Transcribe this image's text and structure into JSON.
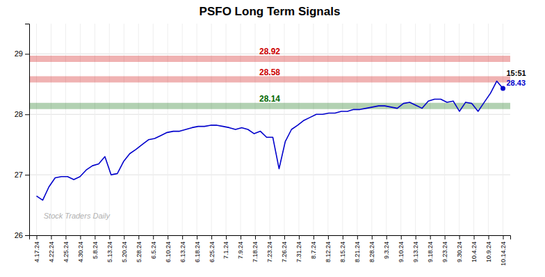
{
  "chart_data": {
    "type": "line",
    "title": "PSFO Long Term Signals",
    "color": "#0000cc",
    "grid": true,
    "xlim": [
      -0.5,
      32.5
    ],
    "xticks": [
      {
        "value": 0,
        "label": "4.17.24"
      },
      {
        "value": 1,
        "label": "4.22.24"
      },
      {
        "value": 2,
        "label": "4.25.24"
      },
      {
        "value": 3,
        "label": "4.30.24"
      },
      {
        "value": 4,
        "label": "5.8.24"
      },
      {
        "value": 5,
        "label": "5.13.24"
      },
      {
        "value": 6,
        "label": "5.20.24"
      },
      {
        "value": 7,
        "label": "5.28.24"
      },
      {
        "value": 8,
        "label": "6.5.24"
      },
      {
        "value": 9,
        "label": "6.10.24"
      },
      {
        "value": 10,
        "label": "6.13.24"
      },
      {
        "value": 11,
        "label": "6.18.24"
      },
      {
        "value": 12,
        "label": "6.25.24"
      },
      {
        "value": 13,
        "label": "7.1.24"
      },
      {
        "value": 14,
        "label": "7.9.24"
      },
      {
        "value": 15,
        "label": "7.18.24"
      },
      {
        "value": 16,
        "label": "7.23.24"
      },
      {
        "value": 17,
        "label": "7.26.24"
      },
      {
        "value": 18,
        "label": "7.31.24"
      },
      {
        "value": 19,
        "label": "8.7.24"
      },
      {
        "value": 20,
        "label": "8.12.24"
      },
      {
        "value": 21,
        "label": "8.15.24"
      },
      {
        "value": 22,
        "label": "8.21.24"
      },
      {
        "value": 23,
        "label": "8.28.24"
      },
      {
        "value": 24,
        "label": "9.3.24"
      },
      {
        "value": 25,
        "label": "9.10.24"
      },
      {
        "value": 26,
        "label": "9.13.24"
      },
      {
        "value": 27,
        "label": "9.18.24"
      },
      {
        "value": 28,
        "label": "9.23.24"
      },
      {
        "value": 29,
        "label": "9.30.24"
      },
      {
        "value": 30,
        "label": "10.4.24"
      },
      {
        "value": 31,
        "label": "10.9.24"
      },
      {
        "value": 32,
        "label": "10.14.24"
      }
    ],
    "ylim": [
      26.0,
      29.5
    ],
    "yticks": [
      26,
      27,
      28,
      29
    ],
    "x": [
      0,
      0.4266666666666667,
      0.8533333333333334,
      1.28,
      1.7066666666666668,
      2.1333333333333333,
      2.56,
      2.986666666666667,
      3.4133333333333336,
      3.84,
      4.266666666666667,
      4.693333333333333,
      5.12,
      5.546666666666667,
      5.973333333333334,
      6.4,
      6.826666666666667,
      7.253333333333333,
      7.68,
      8.106666666666667,
      8.533333333333333,
      8.96,
      9.386666666666667,
      9.813333333333333,
      10.24,
      10.666666666666666,
      11.093333333333334,
      11.52,
      11.946666666666667,
      12.373333333333333,
      12.8,
      13.226666666666667,
      13.653333333333334,
      14.08,
      14.506666666666666,
      14.933333333333334,
      15.36,
      15.786666666666667,
      16.213333333333335,
      16.64,
      17.066666666666666,
      17.493333333333332,
      17.92,
      18.346666666666668,
      18.773333333333333,
      19.2,
      19.626666666666665,
      20.053333333333335,
      20.48,
      20.906666666666666,
      21.333333333333332,
      21.76,
      22.186666666666667,
      22.613333333333333,
      23.04,
      23.466666666666665,
      23.893333333333334,
      24.32,
      24.746666666666666,
      25.173333333333332,
      25.6,
      26.026666666666667,
      26.453333333333333,
      26.88,
      27.306666666666665,
      27.733333333333334,
      28.16,
      28.586666666666666,
      29.013333333333332,
      29.44,
      29.866666666666667,
      30.293333333333333,
      30.72,
      31.146666666666665,
      31.573333333333334,
      32
    ],
    "values": [
      26.65,
      26.58,
      26.8,
      26.95,
      26.97,
      26.97,
      26.92,
      26.97,
      27.08,
      27.15,
      27.18,
      27.3,
      27.0,
      27.02,
      27.22,
      27.35,
      27.42,
      27.5,
      27.58,
      27.6,
      27.65,
      27.7,
      27.72,
      27.72,
      27.75,
      27.78,
      27.8,
      27.8,
      27.82,
      27.82,
      27.8,
      27.78,
      27.75,
      27.78,
      27.75,
      27.68,
      27.72,
      27.62,
      27.62,
      27.1,
      27.55,
      27.75,
      27.82,
      27.9,
      27.95,
      28.0,
      28.0,
      28.02,
      28.02,
      28.05,
      28.05,
      28.08,
      28.08,
      28.1,
      28.12,
      28.14,
      28.14,
      28.12,
      28.1,
      28.18,
      28.2,
      28.15,
      28.1,
      28.22,
      28.25,
      28.25,
      28.2,
      28.22,
      28.05,
      28.2,
      28.18,
      28.05,
      28.2,
      28.35,
      28.55,
      28.43
    ],
    "reference_lines": [
      {
        "value": 28.92,
        "label": "28.92",
        "color": "#cc0000"
      },
      {
        "value": 28.58,
        "label": "28.58",
        "color": "#cc0000"
      },
      {
        "value": 28.14,
        "label": "28.14",
        "color": "#006600"
      }
    ],
    "annotations": [
      {
        "text": "15:51",
        "color": "#000000"
      },
      {
        "text": "28.43",
        "color": "#0000cc"
      }
    ],
    "watermark": "Stock Traders Daily"
  }
}
